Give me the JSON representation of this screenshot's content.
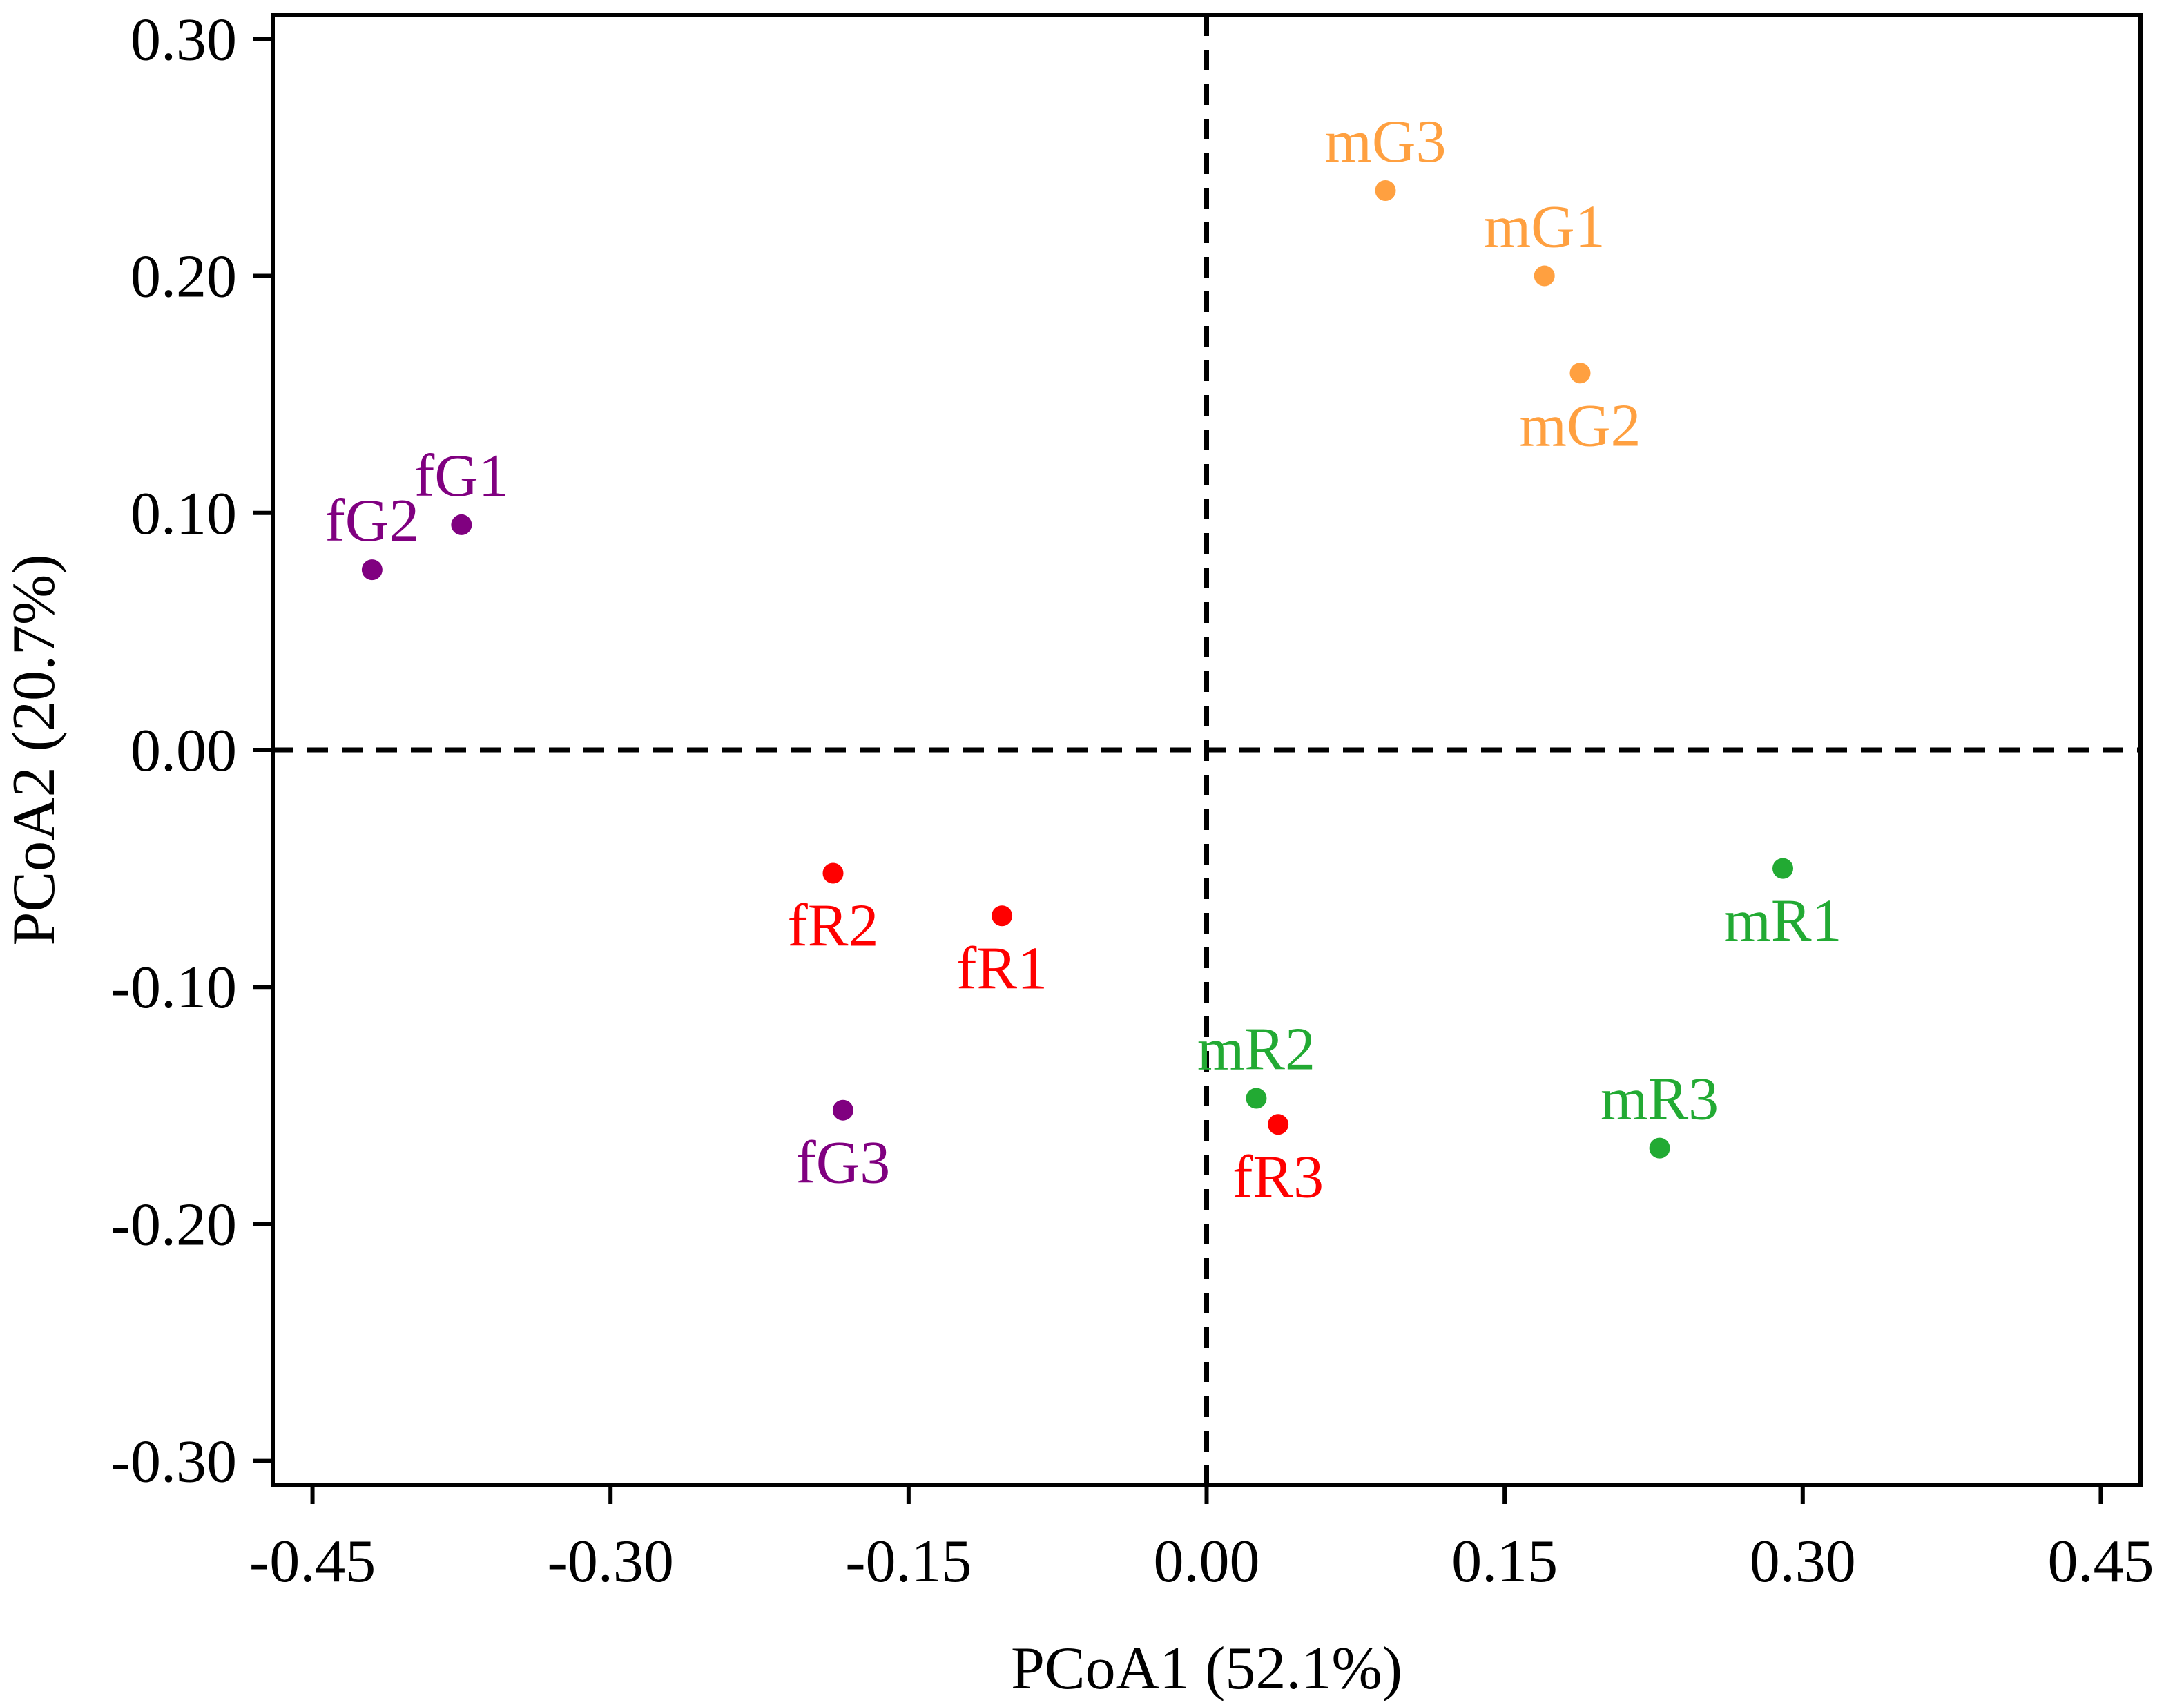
{
  "chart_data": {
    "type": "scatter",
    "title": "",
    "xlabel": "PCoA1 (52.1%)",
    "ylabel": "PCoA2 (20.7%)",
    "xlim": [
      -0.47,
      0.47
    ],
    "ylim": [
      -0.31,
      0.31
    ],
    "xticks": [
      -0.45,
      -0.3,
      -0.15,
      0.0,
      0.15,
      0.3,
      0.45
    ],
    "xtick_labels": [
      "-0.45",
      "-0.30",
      "-0.15",
      "0.00",
      "0.15",
      "0.30",
      "0.45"
    ],
    "yticks": [
      -0.3,
      -0.2,
      -0.1,
      0.0,
      0.1,
      0.2,
      0.3
    ],
    "ytick_labels": [
      "-0.30",
      "-0.20",
      "-0.10",
      "0.00",
      "0.10",
      "0.20",
      "0.30"
    ],
    "reference_lines": {
      "x": 0,
      "y": 0,
      "style": "dashed"
    },
    "grid": false,
    "colors": {
      "fG": "#800080",
      "fR": "#ff0000",
      "mG": "#ffa040",
      "mR": "#22aa33"
    },
    "points": [
      {
        "label": "fG1",
        "group": "fG",
        "x": -0.375,
        "y": 0.095,
        "label_pos": "above"
      },
      {
        "label": "fG2",
        "group": "fG",
        "x": -0.42,
        "y": 0.076,
        "label_pos": "above"
      },
      {
        "label": "fG3",
        "group": "fG",
        "x": -0.183,
        "y": -0.152,
        "label_pos": "below"
      },
      {
        "label": "fR1",
        "group": "fR",
        "x": -0.103,
        "y": -0.07,
        "label_pos": "below"
      },
      {
        "label": "fR2",
        "group": "fR",
        "x": -0.188,
        "y": -0.052,
        "label_pos": "below"
      },
      {
        "label": "fR3",
        "group": "fR",
        "x": 0.036,
        "y": -0.158,
        "label_pos": "below"
      },
      {
        "label": "mG1",
        "group": "mG",
        "x": 0.17,
        "y": 0.2,
        "label_pos": "above"
      },
      {
        "label": "mG2",
        "group": "mG",
        "x": 0.188,
        "y": 0.159,
        "label_pos": "below"
      },
      {
        "label": "mG3",
        "group": "mG",
        "x": 0.09,
        "y": 0.236,
        "label_pos": "above"
      },
      {
        "label": "mR1",
        "group": "mR",
        "x": 0.29,
        "y": -0.05,
        "label_pos": "below"
      },
      {
        "label": "mR2",
        "group": "mR",
        "x": 0.025,
        "y": -0.147,
        "label_pos": "above"
      },
      {
        "label": "mR3",
        "group": "mR",
        "x": 0.228,
        "y": -0.168,
        "label_pos": "above"
      }
    ]
  }
}
